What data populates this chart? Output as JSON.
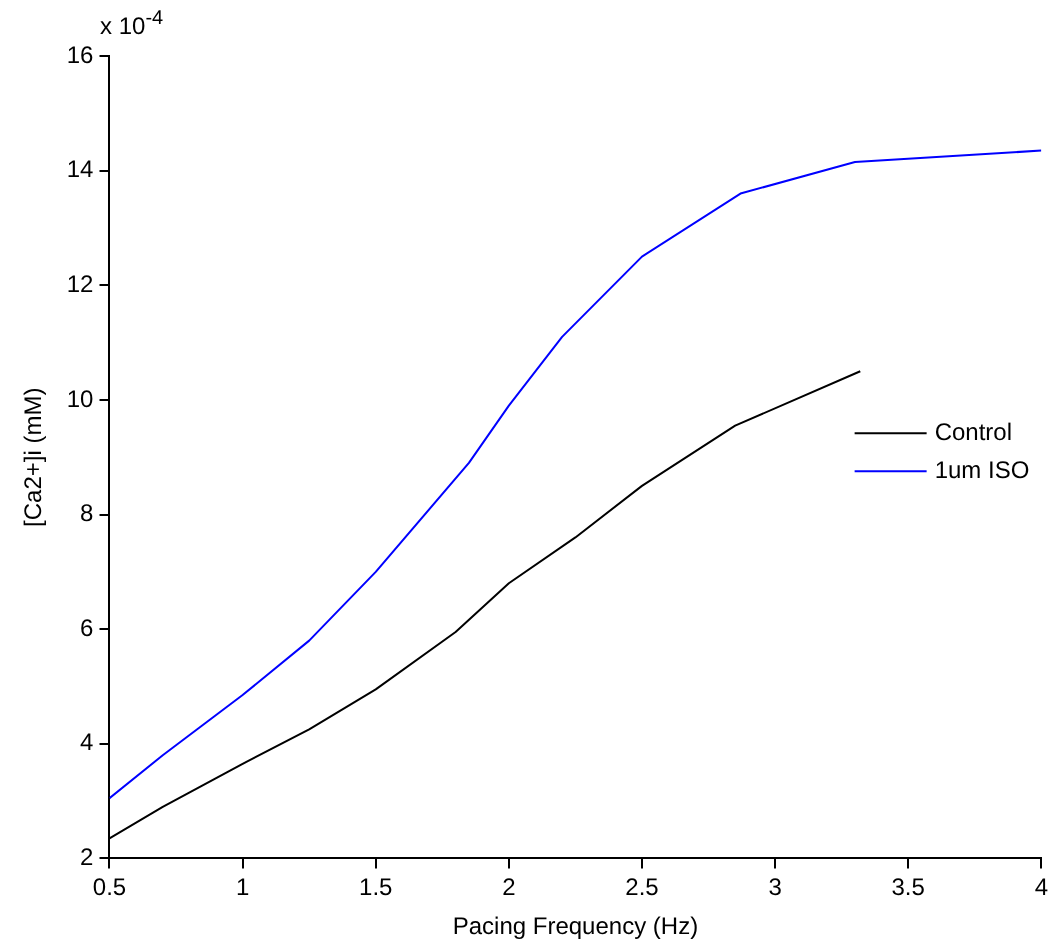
{
  "chart_data": {
    "type": "line",
    "xlabel": "Pacing Frequency (Hz)",
    "ylabel": "[Ca2+]i (mM)",
    "annotations": [
      "x 10$^{-4}$"
    ],
    "xlim": [
      0.5,
      4
    ],
    "xticks": [
      0.5,
      1,
      1.5,
      2,
      2.5,
      3,
      3.5,
      4
    ],
    "ylim": [
      2,
      16
    ],
    "yticks": [
      2,
      4,
      6,
      8,
      10,
      12,
      14,
      16
    ],
    "grid": false,
    "legend": "right",
    "marker": "none",
    "line_style": "solid",
    "series": [
      {
        "name": "Control",
        "color": "#000000",
        "x": [
          0.5,
          0.7,
          1,
          1.25,
          1.5,
          1.8,
          2,
          2.25,
          2.5,
          2.85,
          3.32
        ],
        "values": [
          2.35,
          2.9,
          3.65,
          4.25,
          4.95,
          5.95,
          6.8,
          7.6,
          8.5,
          9.55,
          10.5
        ]
      },
      {
        "name": "1um ISO",
        "color": "#0000ff",
        "x": [
          0.5,
          0.7,
          1,
          1.25,
          1.5,
          1.85,
          2,
          2.2,
          2.5,
          2.87,
          3.3,
          4
        ],
        "values": [
          3.05,
          3.8,
          4.85,
          5.8,
          7.0,
          8.9,
          9.9,
          11.1,
          12.5,
          13.6,
          14.15,
          14.35
        ]
      }
    ]
  }
}
